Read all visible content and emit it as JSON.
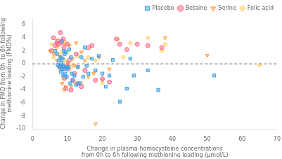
{
  "chart_data": {
    "type": "scatter",
    "xlabel": "Change in plasma homocysteine concentrations\nfrom 0h to 6h following methionine loading (μmol/L)",
    "ylabel": "Change in FMD from 0h  to 6h following\nmethionine loading (FMD%)",
    "xlim": [
      0,
      70
    ],
    "ylim": [
      -10,
      7
    ],
    "xticks": [
      0,
      10,
      20,
      30,
      40,
      50,
      60,
      70
    ],
    "yticks": [
      -10,
      -8,
      -6,
      -4,
      -2,
      0,
      2,
      4,
      6
    ],
    "grid": false,
    "legend": "upper right",
    "hline": {
      "y": 0,
      "line_style": "dashed"
    },
    "series": [
      {
        "name": "Placebo",
        "marker": "square",
        "x": [
          6.5,
          7.0,
          7.2,
          7.5,
          7.8,
          8.0,
          8.1,
          8.2,
          8.3,
          8.4,
          8.5,
          8.6,
          8.7,
          8.8,
          9.0,
          9.1,
          9.2,
          9.3,
          9.5,
          9.6,
          9.8,
          10.0,
          10.2,
          10.5,
          10.8,
          11.0,
          11.2,
          11.5,
          12.0,
          12.5,
          13.0,
          13.5,
          14.0,
          14.5,
          15.0,
          15.5,
          16.0,
          17.0,
          18.0,
          19.0,
          20.0,
          21.0,
          22.0,
          23.0,
          25.0,
          27.0,
          28.0,
          29.0,
          33.0,
          36.0,
          52.0
        ],
        "values": [
          2.0,
          1.5,
          -0.2,
          0.5,
          -0.5,
          1.0,
          -1.2,
          -0.3,
          0.2,
          3.5,
          -0.8,
          0.8,
          -0.4,
          -1.8,
          2.0,
          -0.5,
          1.5,
          -1.5,
          1.8,
          -0.8,
          -2.0,
          -0.6,
          -0.5,
          2.2,
          -3.0,
          1.0,
          -1.5,
          -2.5,
          -1.8,
          -3.2,
          -0.5,
          -3.0,
          1.0,
          -2.0,
          2.5,
          -0.3,
          -1.5,
          0.8,
          -1.0,
          1.2,
          -1.5,
          -3.5,
          -1.8,
          0.6,
          -5.8,
          -3.8,
          0.8,
          -1.8,
          -1.0,
          -4.0,
          -1.8
        ]
      },
      {
        "name": "Betaine",
        "marker": "circle",
        "x": [
          5.5,
          6.0,
          6.5,
          7.0,
          7.2,
          7.5,
          7.8,
          8.0,
          8.2,
          8.5,
          8.8,
          9.0,
          9.2,
          9.5,
          9.8,
          10.0,
          10.2,
          10.5,
          11.0,
          11.5,
          12.0,
          12.5,
          13.0,
          14.0,
          15.0,
          16.0,
          17.0,
          18.0,
          20.0,
          22.0,
          24.0,
          25.0,
          27.0,
          30.0,
          33.0,
          37.0
        ],
        "values": [
          2.0,
          4.0,
          2.8,
          3.2,
          3.5,
          3.0,
          -0.5,
          4.8,
          3.3,
          -0.8,
          3.8,
          2.5,
          -2.2,
          -3.8,
          -0.3,
          3.0,
          -0.8,
          0.5,
          -4.0,
          -2.5,
          -1.5,
          1.5,
          -3.0,
          -3.5,
          -1.0,
          2.5,
          2.8,
          -2.5,
          -2.3,
          -2.8,
          3.8,
          3.0,
          2.2,
          3.0,
          2.8,
          2.5
        ]
      },
      {
        "name": "Serine",
        "marker": "triangle_down",
        "x": [
          5.0,
          6.0,
          7.0,
          7.5,
          8.0,
          8.5,
          9.0,
          9.5,
          10.0,
          10.5,
          11.0,
          11.5,
          12.0,
          12.5,
          13.0,
          14.0,
          15.0,
          16.0,
          17.5,
          18.0,
          19.0,
          20.0,
          22.0,
          38.0,
          50.0
        ],
        "values": [
          2.0,
          1.5,
          0.5,
          -0.5,
          1.0,
          -3.0,
          3.0,
          -3.5,
          0.2,
          2.8,
          -3.5,
          0.8,
          -0.3,
          3.2,
          -0.5,
          1.8,
          0.5,
          -2.0,
          -1.5,
          -9.2,
          1.0,
          -2.5,
          -0.8,
          4.0,
          1.3
        ]
      },
      {
        "name": "Folic acid",
        "marker": "diamond",
        "x": [
          5.5,
          6.0,
          7.0,
          7.5,
          8.0,
          8.2,
          8.5,
          8.8,
          9.0,
          9.2,
          9.5,
          10.0,
          10.5,
          11.0,
          12.0,
          13.0,
          14.0,
          16.0,
          18.0,
          20.0,
          24.5,
          26.0,
          28.0,
          33.0,
          37.0,
          38.0,
          65.0
        ],
        "values": [
          3.0,
          1.0,
          2.5,
          1.5,
          -0.5,
          0.8,
          1.8,
          -2.3,
          -4.0,
          0.5,
          3.3,
          1.8,
          -0.2,
          -0.5,
          -2.8,
          1.2,
          -3.0,
          1.0,
          0.5,
          -3.0,
          3.8,
          1.0,
          3.2,
          4.0,
          2.0,
          3.0,
          -0.2
        ]
      }
    ]
  }
}
